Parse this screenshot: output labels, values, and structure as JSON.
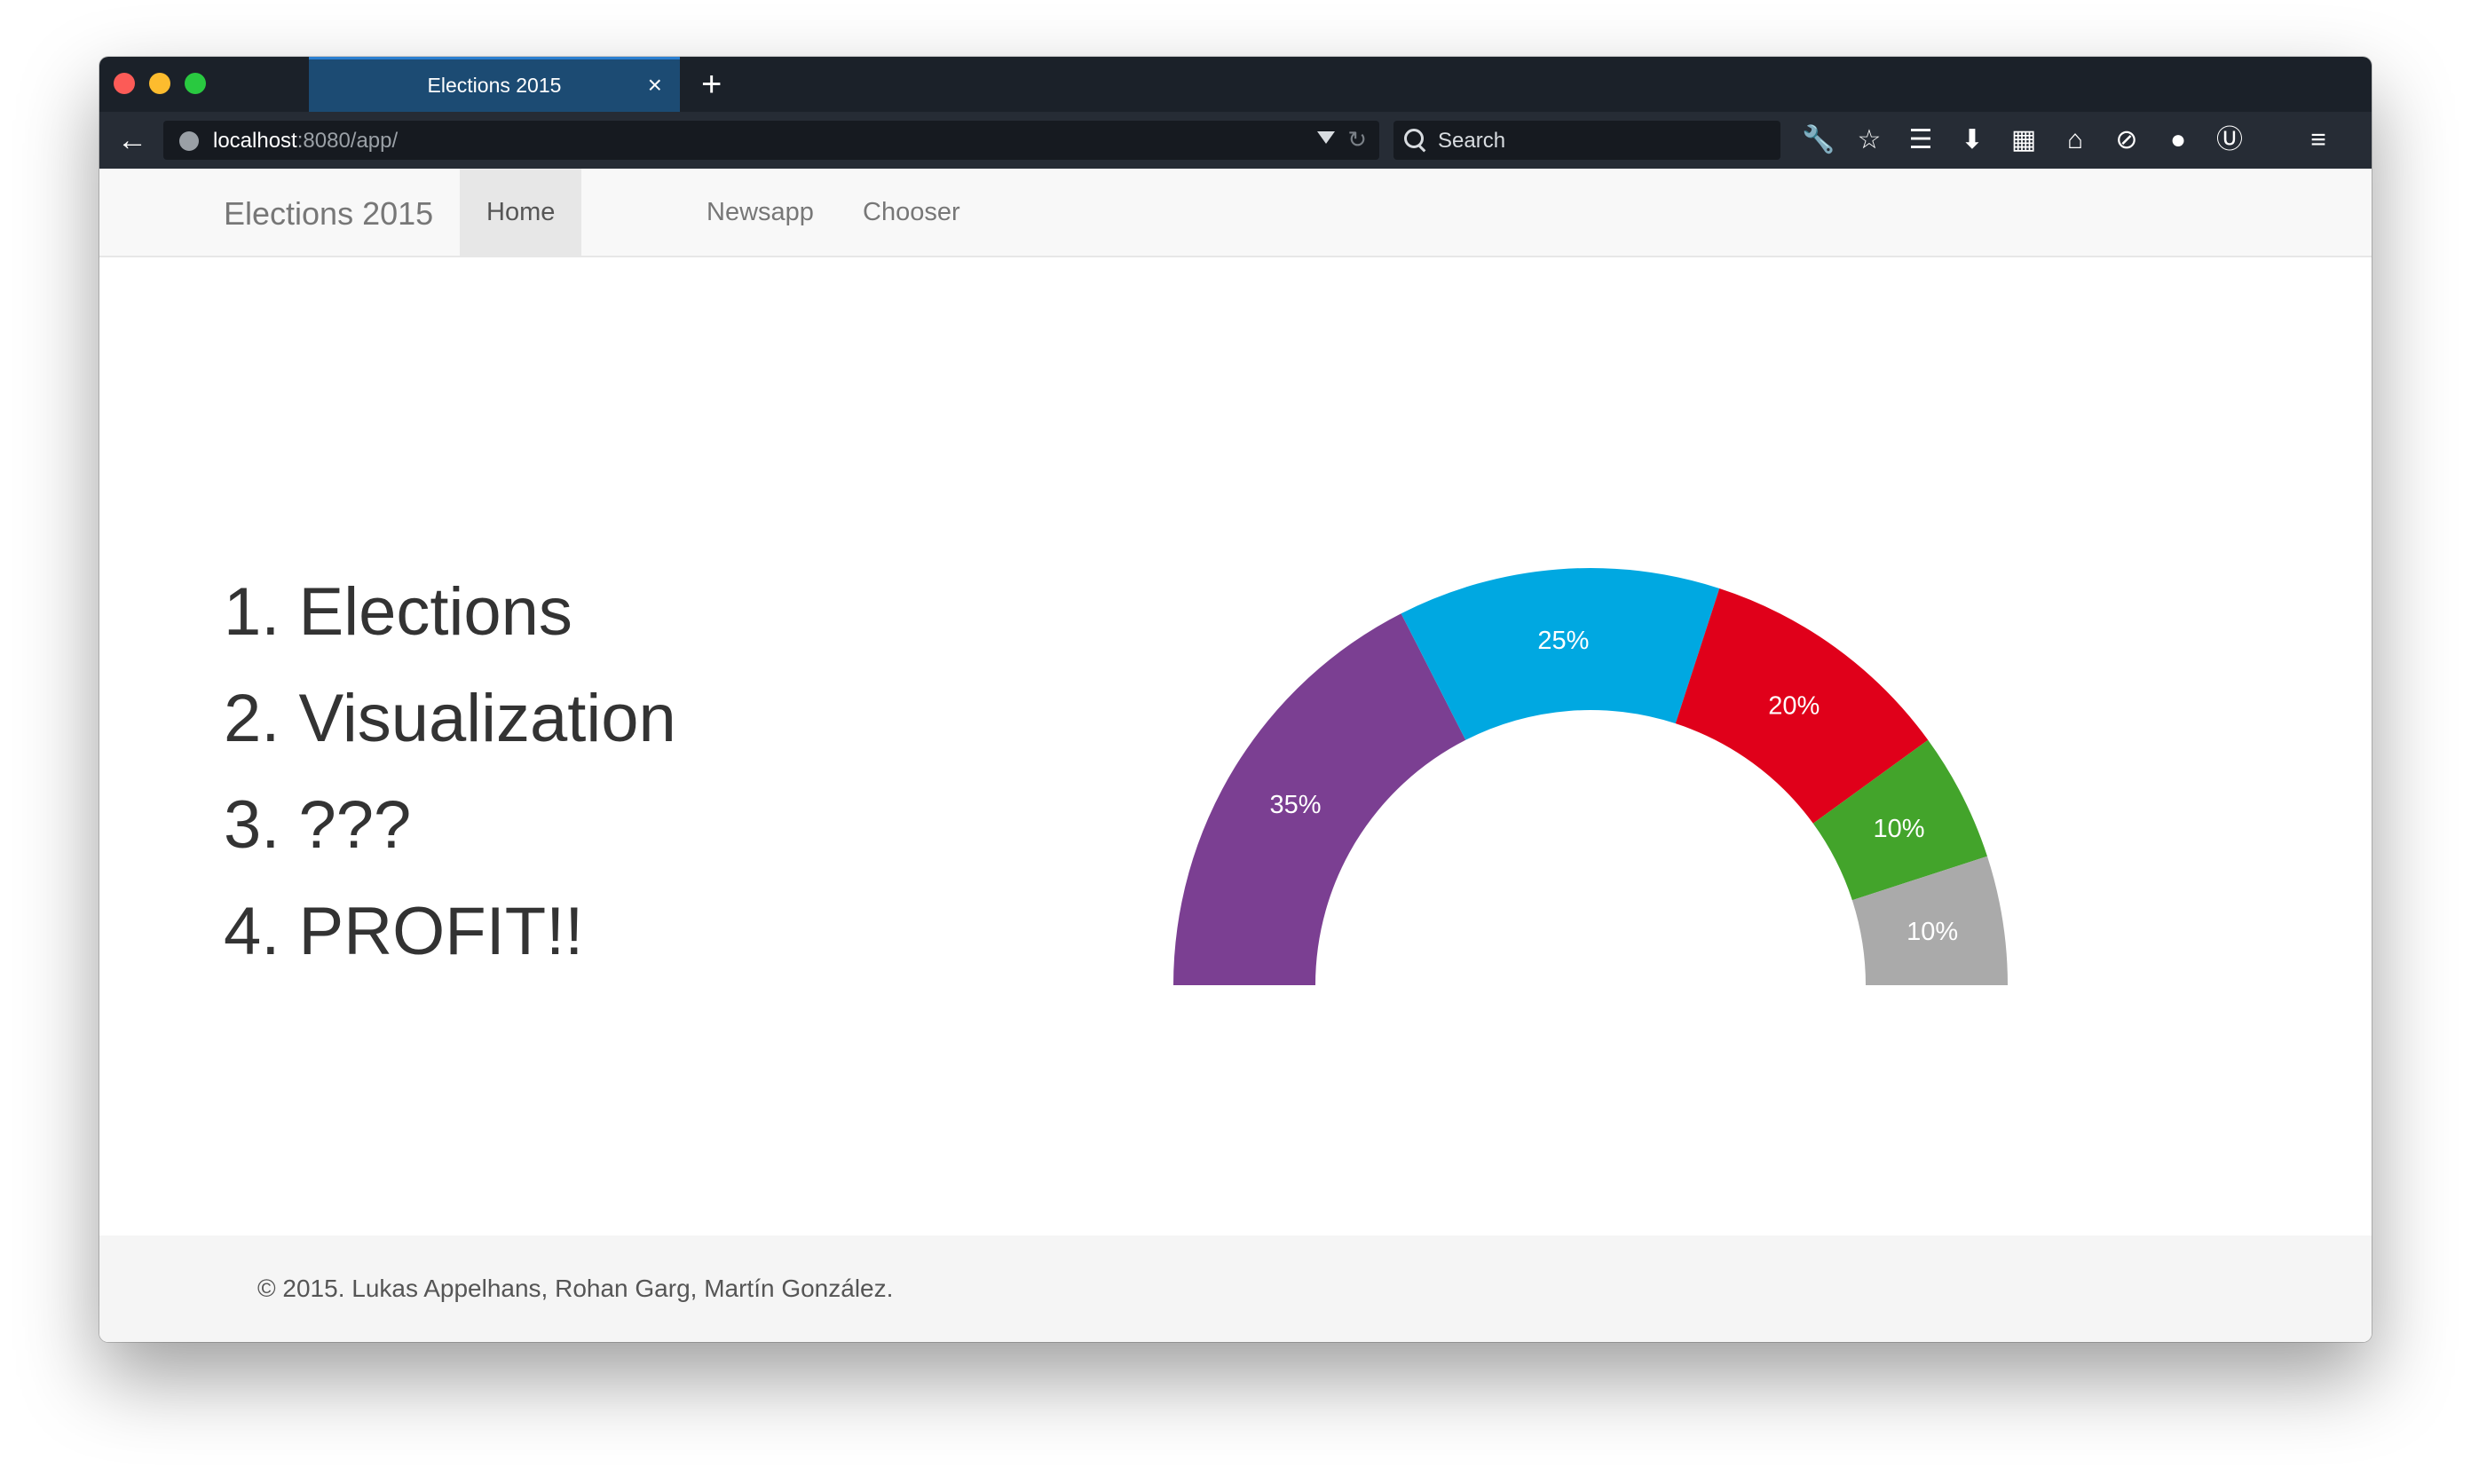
{
  "browser": {
    "tab_title": "Elections 2015",
    "tab_close": "×",
    "new_tab": "+",
    "url_host": "localhost",
    "url_path": ":8080/app/",
    "search_placeholder": "Search",
    "toolbar_icons": [
      "wrench-icon",
      "star-icon",
      "reading-list-icon",
      "download-icon",
      "grid-icon",
      "home-icon",
      "privacy-icon",
      "chat-icon",
      "ublock-icon",
      "menu-icon"
    ]
  },
  "site": {
    "brand": "Elections 2015",
    "nav": [
      "Home",
      "Newsapp",
      "Chooser"
    ],
    "active_nav": "Home"
  },
  "steps": [
    "1. Elections",
    "2. Visualization",
    "3. ???",
    "4. PROFIT!!"
  ],
  "chart_data": {
    "type": "pie",
    "variant": "half-donut",
    "slices": [
      {
        "label": "35%",
        "value": 35,
        "color": "#7b3f92"
      },
      {
        "label": "25%",
        "value": 25,
        "color": "#00a8e1"
      },
      {
        "label": "20%",
        "value": 20,
        "color": "#e0001a"
      },
      {
        "label": "10%",
        "value": 10,
        "color": "#43a42b"
      },
      {
        "label": "10%",
        "value": 10,
        "color": "#aaaaaa"
      }
    ]
  },
  "footer": {
    "text": "© 2015. Lukas Appelhans, Rohan Garg, Martín González."
  }
}
